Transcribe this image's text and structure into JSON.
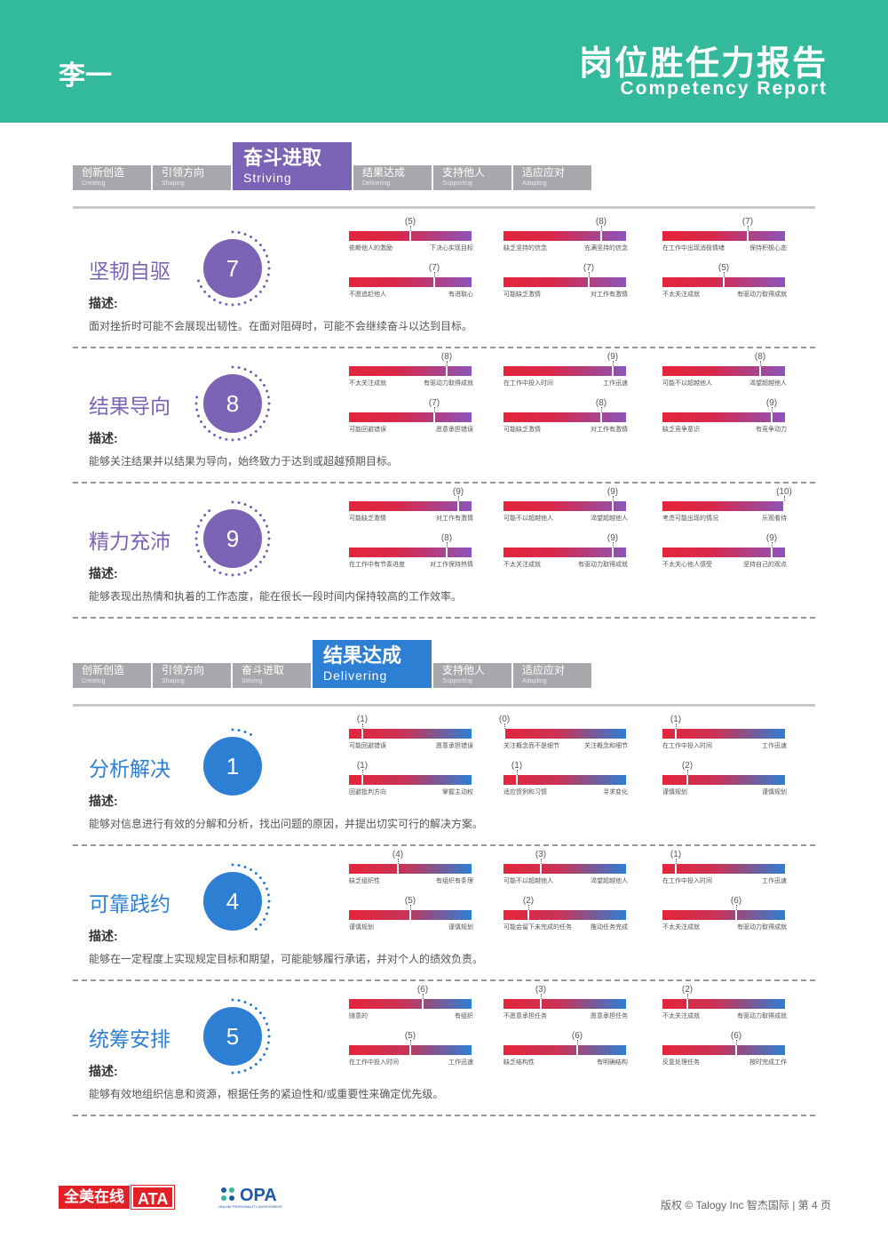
{
  "header": {
    "person": "李一",
    "title": "岗位胜任力报告",
    "subtitle": "Competency Report"
  },
  "colors": {
    "header_bg": "#33b99c",
    "purple": "#7b63b5",
    "blue": "#2d7fd3",
    "red": "#e4253a",
    "tab_gray": "#a6a8ab"
  },
  "sections": [
    {
      "theme": "purple",
      "tabs": [
        {
          "cn": "创新创造",
          "en": "Creating",
          "active": false
        },
        {
          "cn": "引领方向",
          "en": "Shaping",
          "active": false
        },
        {
          "cn": "奋斗进取",
          "en": "Striving",
          "active": true
        },
        {
          "cn": "结果达成",
          "en": "Delivering",
          "active": false
        },
        {
          "cn": "支持他人",
          "en": "Supporting",
          "active": false
        },
        {
          "cn": "适应应对",
          "en": "Adapting",
          "active": false
        }
      ],
      "competencies": [
        {
          "name": "坚韧自驱",
          "score": "7",
          "label": "描述:",
          "desc": "面对挫折时可能不会展现出韧性。在面对阻碍时，可能不会继续奋斗以达到目标。",
          "scales": [
            {
              "value": 5,
              "display": "(5)",
              "left": "依赖他人的激励",
              "right": "下决心实现目标"
            },
            {
              "value": 8,
              "display": "(8)",
              "left": "缺乏坚持的信念",
              "right": "充满坚持的信念"
            },
            {
              "value": 7,
              "display": "(7)",
              "left": "在工作中出现消极情绪",
              "right": "保持积极心态"
            },
            {
              "value": 7,
              "display": "(7)",
              "left": "不愿追赶他人",
              "right": "有进取心"
            },
            {
              "value": 7,
              "display": "(7)",
              "left": "可能缺乏激情",
              "right": "对工作有激情"
            },
            {
              "value": 5,
              "display": "(5)",
              "left": "不太关注成就",
              "right": "有驱动力取得成就"
            }
          ]
        },
        {
          "name": "结果导向",
          "score": "8",
          "label": "描述:",
          "desc": "能够关注结果并以结果为导向，始终致力于达到或超越预期目标。",
          "scales": [
            {
              "value": 8,
              "display": "(8)",
              "left": "不太关注成就",
              "right": "有驱动力取得成就"
            },
            {
              "value": 9,
              "display": "(9)",
              "left": "在工作中投入时间",
              "right": "工作迅速"
            },
            {
              "value": 8,
              "display": "(8)",
              "left": "可能不以超越他人",
              "right": "渴望超越他人"
            },
            {
              "value": 7,
              "display": "(7)",
              "left": "可能回避错误",
              "right": "愿意承担错误"
            },
            {
              "value": 8,
              "display": "(8)",
              "left": "可能缺乏激情",
              "right": "对工作有激情"
            },
            {
              "value": 9,
              "display": "(9)",
              "left": "缺乏竞争意识",
              "right": "有竞争动力"
            }
          ]
        },
        {
          "name": "精力充沛",
          "score": "9",
          "label": "描述:",
          "desc": "能够表现出热情和执着的工作态度，能在很长一段时间内保持较高的工作效率。",
          "scales": [
            {
              "value": 9,
              "display": "(9)",
              "left": "可能缺乏激情",
              "right": "对工作有激情"
            },
            {
              "value": 9,
              "display": "(9)",
              "left": "可能不以超越他人",
              "right": "渴望超越他人"
            },
            {
              "value": 10,
              "display": "(10)",
              "left": "考虑可能出现的情况",
              "right": "乐观看待"
            },
            {
              "value": 8,
              "display": "(8)",
              "left": "在工作中有节奏进度",
              "right": "对工作保持热情"
            },
            {
              "value": 9,
              "display": "(9)",
              "left": "不太关注成就",
              "right": "有驱动力取得成就"
            },
            {
              "value": 9,
              "display": "(9)",
              "left": "不太关心他人感受",
              "right": "坚持自己的观点"
            }
          ]
        }
      ]
    },
    {
      "theme": "blue",
      "tabs": [
        {
          "cn": "创新创造",
          "en": "Creating",
          "active": false
        },
        {
          "cn": "引领方向",
          "en": "Shaping",
          "active": false
        },
        {
          "cn": "奋斗进取",
          "en": "Striving",
          "active": false
        },
        {
          "cn": "结果达成",
          "en": "Delivering",
          "active": true
        },
        {
          "cn": "支持他人",
          "en": "Supporting",
          "active": false
        },
        {
          "cn": "适应应对",
          "en": "Adapting",
          "active": false
        }
      ],
      "competencies": [
        {
          "name": "分析解决",
          "score": "1",
          "label": "描述:",
          "desc": "能够对信息进行有效的分解和分析，找出问题的原因，并提出切实可行的解决方案。",
          "scales": [
            {
              "value": 1,
              "display": "(1)",
              "left": "可能回避错误",
              "right": "愿意承担错误"
            },
            {
              "value": 0,
              "display": "(0)",
              "left": "关注概念而不是细节",
              "right": "关注概念和细节"
            },
            {
              "value": 1,
              "display": "(1)",
              "left": "在工作中投入时间",
              "right": "工作迅速"
            },
            {
              "value": 1,
              "display": "(1)",
              "left": "回避批判方向",
              "right": "掌握主动权"
            },
            {
              "value": 1,
              "display": "(1)",
              "left": "适应惯例和习惯",
              "right": "寻求变化"
            },
            {
              "value": 2,
              "display": "(2)",
              "left": "谨慎规划",
              "right": "谨慎规划"
            }
          ]
        },
        {
          "name": "可靠践约",
          "score": "4",
          "label": "描述:",
          "desc": "能够在一定程度上实现规定目标和期望，可能能够履行承诺，并对个人的绩效负责。",
          "scales": [
            {
              "value": 4,
              "display": "(4)",
              "left": "缺乏组织性",
              "right": "有组织有条理"
            },
            {
              "value": 3,
              "display": "(3)",
              "left": "可能不以超越他人",
              "right": "渴望超越他人"
            },
            {
              "value": 1,
              "display": "(1)",
              "left": "在工作中投入时间",
              "right": "工作迅速"
            },
            {
              "value": 5,
              "display": "(5)",
              "left": "谨慎规划",
              "right": "谨慎规划"
            },
            {
              "value": 2,
              "display": "(2)",
              "left": "可能会留下未完成的任务",
              "right": "推动任务完成"
            },
            {
              "value": 6,
              "display": "(6)",
              "left": "不太关注成就",
              "right": "有驱动力取得成就"
            }
          ]
        },
        {
          "name": "统筹安排",
          "score": "5",
          "label": "描述:",
          "desc": "能够有效地组织信息和资源，根据任务的紧迫性和/或重要性来确定优先级。",
          "scales": [
            {
              "value": 6,
              "display": "(6)",
              "left": "随意的",
              "right": "有组织"
            },
            {
              "value": 3,
              "display": "(3)",
              "left": "不愿意承担任务",
              "right": "愿意承担任务"
            },
            {
              "value": 2,
              "display": "(2)",
              "left": "不太关注成就",
              "right": "有驱动力取得成就"
            },
            {
              "value": 5,
              "display": "(5)",
              "left": "在工作中投入时间",
              "right": "工作迅速"
            },
            {
              "value": 6,
              "display": "(6)",
              "left": "缺乏结构性",
              "right": "有明确结构"
            },
            {
              "value": 6,
              "display": "(6)",
              "left": "反复处理任务",
              "right": "按时完成工作"
            }
          ]
        }
      ]
    }
  ],
  "footer": {
    "ata_text": "全美在线",
    "ata_brand": "ATA",
    "opa_brand": "OPA",
    "opa_tiny": "ONLINE PERSONALITY ASSESSMENT",
    "copyright": "版权 © Talogy Inc  智杰国际  |  第 4 页"
  }
}
